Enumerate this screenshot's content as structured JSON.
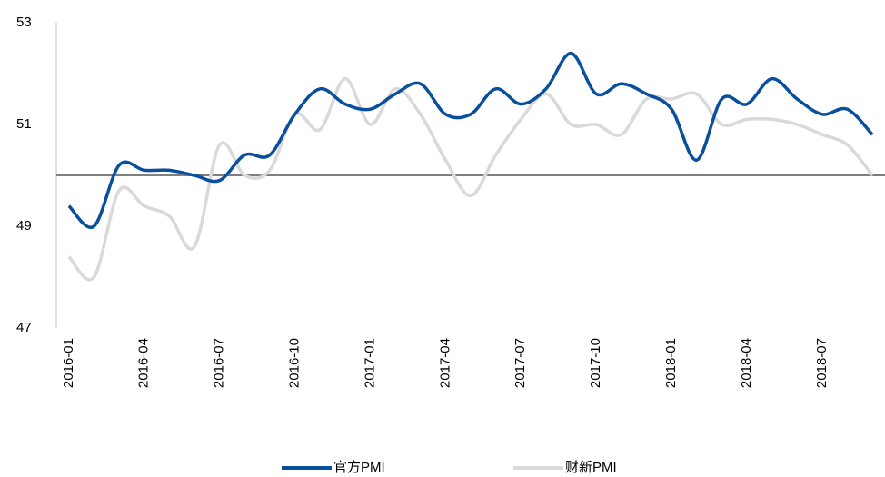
{
  "chart_data": {
    "type": "line",
    "categories": [
      "2016-01",
      null,
      null,
      "2016-04",
      null,
      null,
      "2016-07",
      null,
      null,
      "2016-10",
      null,
      null,
      "2017-01",
      null,
      null,
      "2017-04",
      null,
      null,
      "2017-07",
      null,
      null,
      "2017-10",
      null,
      null,
      "2018-01",
      null,
      null,
      "2018-04",
      null,
      null,
      "2018-07",
      null,
      null
    ],
    "series": [
      {
        "name": "官方PMI",
        "color": "#0a4f9e",
        "values": [
          49.4,
          49.0,
          50.2,
          50.1,
          50.1,
          50.0,
          49.9,
          50.4,
          50.4,
          51.2,
          51.7,
          51.4,
          51.3,
          51.6,
          51.8,
          51.2,
          51.2,
          51.7,
          51.4,
          51.7,
          52.4,
          51.6,
          51.8,
          51.6,
          51.3,
          50.3,
          51.5,
          51.4,
          51.9,
          51.5,
          51.2,
          51.3,
          50.8
        ]
      },
      {
        "name": "财新PMI",
        "color": "#d9d9d9",
        "values": [
          48.4,
          48.0,
          49.7,
          49.4,
          49.2,
          48.6,
          50.6,
          50.0,
          50.1,
          51.2,
          50.9,
          51.9,
          51.0,
          51.7,
          51.2,
          50.3,
          49.6,
          50.4,
          51.1,
          51.6,
          51.0,
          51.0,
          50.8,
          51.5,
          51.5,
          51.6,
          51.0,
          51.1,
          51.1,
          51.0,
          50.8,
          50.6,
          50.0
        ]
      }
    ],
    "ylim": [
      47,
      53
    ],
    "yticks": [
      47,
      49,
      51,
      53
    ],
    "hline": 50,
    "hline_color": "#7f7f7f"
  }
}
